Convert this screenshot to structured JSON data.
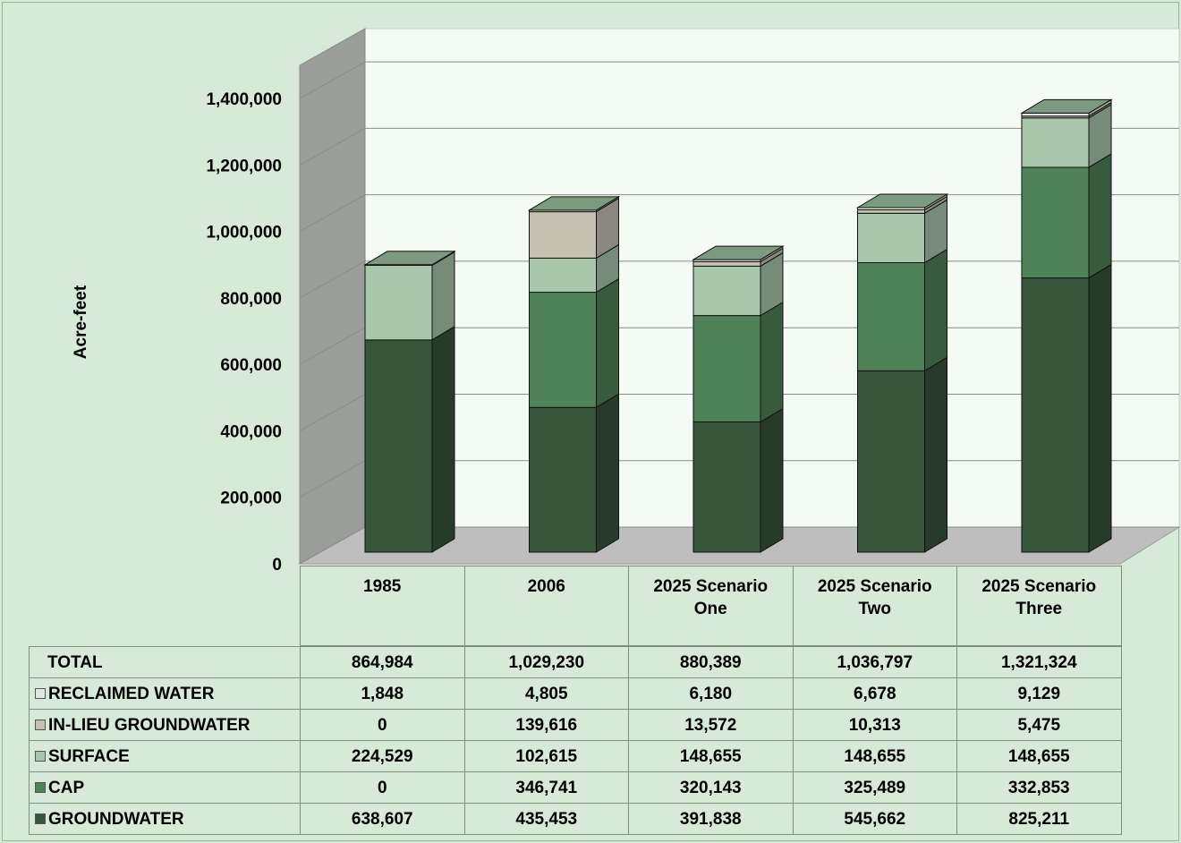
{
  "chart_data": {
    "type": "bar",
    "stacked": true,
    "y_label": "Acre-feet",
    "categories": [
      "1985",
      "2006",
      "2025 Scenario One",
      "2025 Scenario Two",
      "2025 Scenario Three"
    ],
    "series": [
      {
        "name": "GROUNDWATER",
        "color": "#36553a",
        "values": [
          638607,
          435453,
          391838,
          545662,
          825211
        ],
        "value_labels": [
          "638,607",
          "435,453",
          "391,838",
          "545,662",
          "825,211"
        ]
      },
      {
        "name": "CAP",
        "color": "#4f8256",
        "values": [
          0,
          346741,
          320143,
          325489,
          332853
        ],
        "value_labels": [
          "0",
          "346,741",
          "320,143",
          "325,489",
          "332,853"
        ]
      },
      {
        "name": "SURFACE",
        "color": "#a9c8ab",
        "values": [
          224529,
          102615,
          148655,
          148655,
          148655
        ],
        "value_labels": [
          "224,529",
          "102,615",
          "148,655",
          "148,655",
          "148,655"
        ]
      },
      {
        "name": "IN-LIEU GROUNDWATER",
        "color": "#c5c1b1",
        "values": [
          0,
          139616,
          13572,
          10313,
          5475
        ],
        "value_labels": [
          "0",
          "139,616",
          "13,572",
          "10,313",
          "5,475"
        ]
      },
      {
        "name": "RECLAIMED WATER",
        "color": "#dfe9df",
        "values": [
          1848,
          4805,
          6180,
          6678,
          9129
        ],
        "value_labels": [
          "1,848",
          "4,805",
          "6,180",
          "6,678",
          "9,129"
        ]
      }
    ],
    "totals": {
      "name": "TOTAL",
      "values": [
        864984,
        1029230,
        880389,
        1036797,
        1321324
      ],
      "value_labels": [
        "864,984",
        "1,029,230",
        "880,389",
        "1,036,797",
        "1,321,324"
      ]
    },
    "ylim": [
      0,
      1500000
    ],
    "yticks": [
      {
        "value": 0,
        "label": "0"
      },
      {
        "value": 200000,
        "label": "200,000"
      },
      {
        "value": 400000,
        "label": "400,000"
      },
      {
        "value": 600000,
        "label": "600,000"
      },
      {
        "value": 800000,
        "label": "800,000"
      },
      {
        "value": 1000000,
        "label": "1,000,000"
      },
      {
        "value": 1200000,
        "label": "1,200,000"
      },
      {
        "value": 1400000,
        "label": "1,400,000"
      }
    ],
    "grid": true
  }
}
